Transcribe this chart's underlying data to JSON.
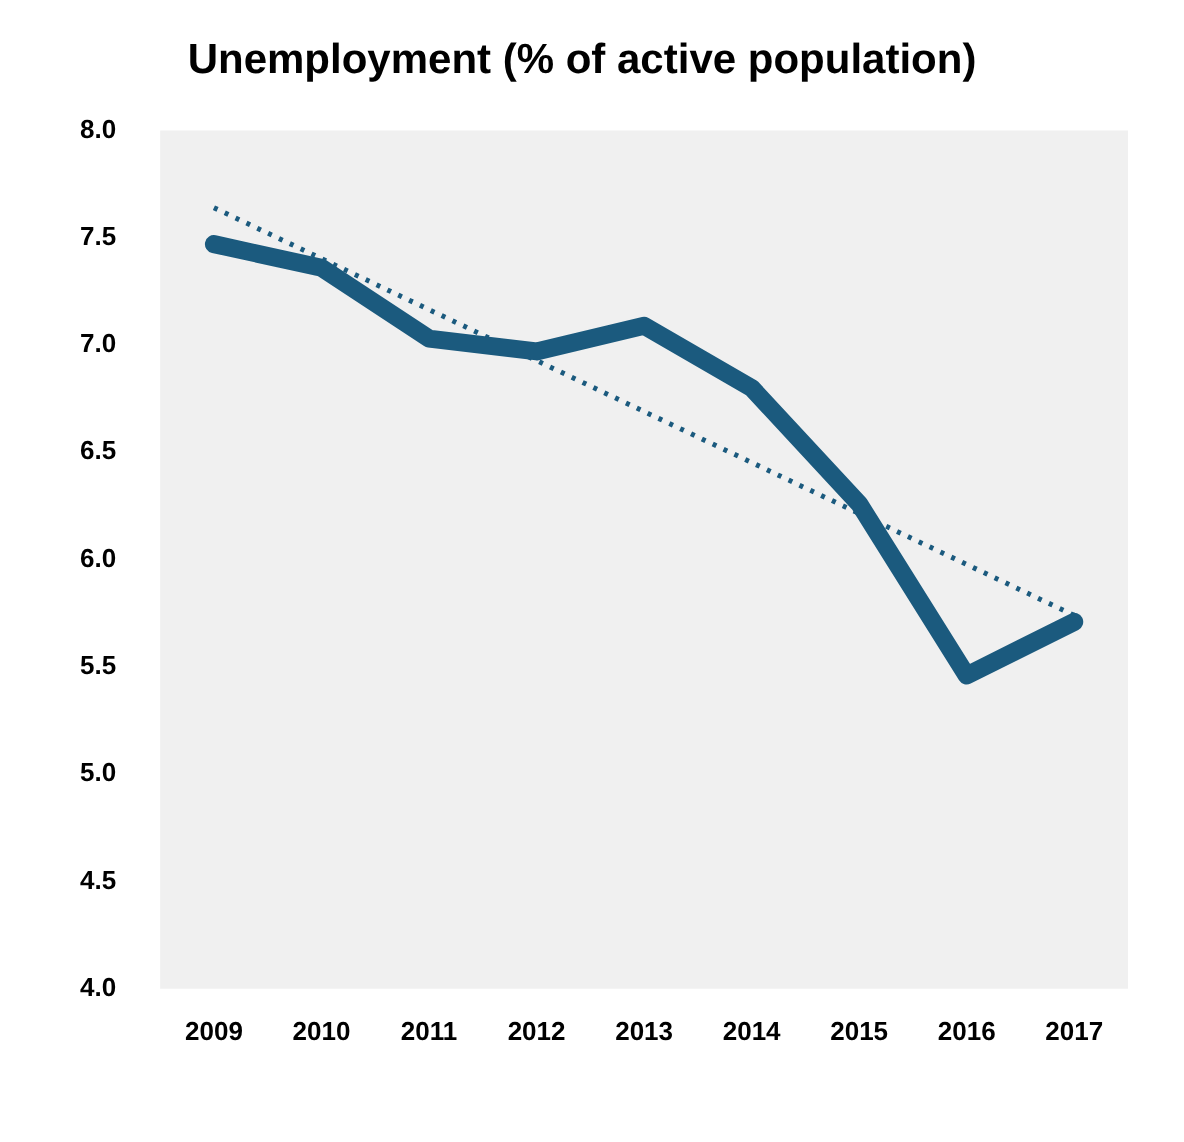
{
  "chart_data": {
    "type": "line",
    "title": "Unemployment (% of active population)",
    "categories": [
      "2009",
      "2010",
      "2011",
      "2012",
      "2013",
      "2014",
      "2015",
      "2016",
      "2017"
    ],
    "series": [
      {
        "color": "#1b5a7e",
        "values": [
          7.47,
          7.36,
          7.03,
          6.97,
          7.09,
          6.8,
          6.26,
          5.46,
          5.71
        ],
        "line_style": "solid"
      },
      {
        "type": "line",
        "color": "#1b5a7e",
        "values": [
          7.64,
          null,
          null,
          null,
          null,
          null,
          null,
          null,
          5.74
        ],
        "line_style": "dotted"
      }
    ],
    "ylim": [
      4.0,
      8.0
    ],
    "yticks": [
      {
        "value": 4,
        "label": "4.0"
      },
      {
        "value": 4.5,
        "label": "4.5"
      },
      {
        "value": 5,
        "label": "5.0"
      },
      {
        "value": 5.5,
        "label": "5.5"
      },
      {
        "value": 6,
        "label": "6.0"
      },
      {
        "value": 6.5,
        "label": "6.5"
      },
      {
        "value": 7,
        "label": "7.0"
      },
      {
        "value": 7.5,
        "label": "7.5"
      },
      {
        "value": 8,
        "label": "8.0"
      }
    ],
    "grid": false,
    "legend": false,
    "marker": "none"
  }
}
